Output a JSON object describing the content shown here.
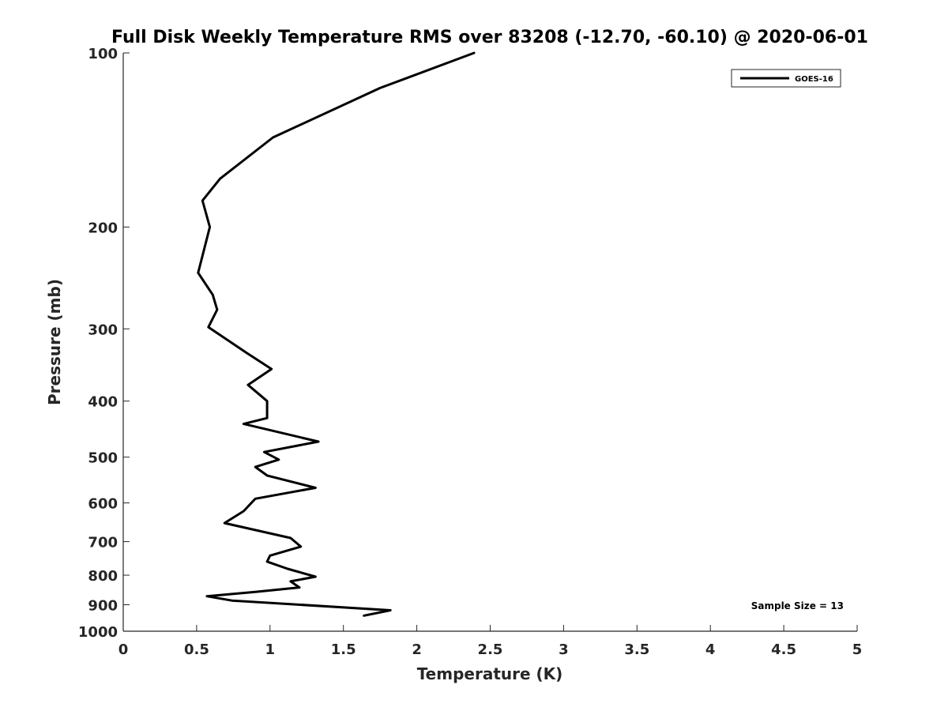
{
  "chart_data": {
    "type": "line",
    "title": "Full Disk Weekly Temperature RMS over 83208 (-12.70, -60.10) @ 2020-06-01",
    "xlabel": "Temperature (K)",
    "ylabel": "Pressure (mb)",
    "xlim": [
      0,
      5
    ],
    "ylim": [
      100,
      1000
    ],
    "yscale": "log",
    "y_reversed": true,
    "xticks": [
      "0",
      "0.5",
      "1",
      "1.5",
      "2",
      "2.5",
      "3",
      "3.5",
      "4",
      "4.5",
      "5"
    ],
    "yticks": [
      "100",
      "200",
      "300",
      "400",
      "500",
      "600",
      "700",
      "800",
      "900",
      "1000"
    ],
    "grid": false,
    "legend_position": "top-right",
    "annotation": "Sample Size = 13",
    "series": [
      {
        "name": "GOES-16",
        "color": "#000000",
        "x": [
          2.39,
          1.75,
          1.02,
          0.66,
          0.54,
          0.59,
          0.51,
          0.61,
          0.64,
          0.58,
          0.84,
          1.01,
          0.85,
          0.98,
          0.98,
          0.82,
          1.33,
          0.96,
          1.06,
          0.9,
          0.98,
          1.31,
          0.9,
          0.82,
          0.69,
          1.14,
          1.21,
          1.0,
          0.98,
          1.12,
          1.31,
          1.14,
          1.2,
          0.9,
          0.57,
          0.74,
          1.82,
          1.64
        ],
        "y": [
          100,
          115,
          140,
          165,
          180,
          200,
          240,
          262,
          278,
          298,
          330,
          352,
          375,
          400,
          428,
          438,
          470,
          490,
          505,
          520,
          538,
          565,
          590,
          620,
          650,
          690,
          714,
          740,
          758,
          780,
          805,
          820,
          840,
          855,
          870,
          885,
          920,
          940
        ]
      }
    ]
  }
}
